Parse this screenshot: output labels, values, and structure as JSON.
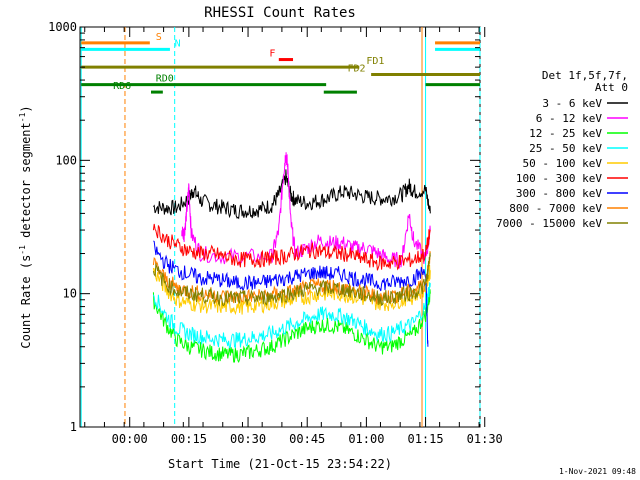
{
  "chart_data": {
    "type": "line",
    "title": "RHESSI Count Rates",
    "xlabel": "Start Time (21-Oct-15 23:54:22)",
    "ylabel_main": "Count Rate (s",
    "ylabel_sup1": "-1",
    "ylabel_mid": " detector segment",
    "ylabel_sup2": "-1",
    "ylabel_end": ")",
    "y_scale": "log",
    "ylim": [
      1,
      1000
    ],
    "y_ticks": [
      {
        "v": 1,
        "label": "1"
      },
      {
        "v": 10,
        "label": "10"
      },
      {
        "v": 100,
        "label": "100"
      },
      {
        "v": 1000,
        "label": "1000"
      }
    ],
    "xlim": [
      -0.11,
      1.58
    ],
    "x_ticks": [
      {
        "v": 0.1,
        "label": "00:00"
      },
      {
        "v": 0.35,
        "label": "00:15"
      },
      {
        "v": 0.6,
        "label": "00:30"
      },
      {
        "v": 0.85,
        "label": "00:45"
      },
      {
        "v": 1.1,
        "label": "01:00"
      },
      {
        "v": 1.35,
        "label": "01:15"
      },
      {
        "v": 1.6,
        "label": "01:30"
      }
    ],
    "minor_x_step": 0.0833,
    "legend_header": [
      "Det 1f,5f,7f,",
      "Att 0"
    ],
    "legend_position": "right",
    "series": [
      {
        "name": "3 - 6 keV",
        "color": "#000000",
        "points": [
          [
            0.2,
            45
          ],
          [
            0.25,
            44
          ],
          [
            0.3,
            44
          ],
          [
            0.35,
            52
          ],
          [
            0.37,
            60
          ],
          [
            0.4,
            50
          ],
          [
            0.45,
            46
          ],
          [
            0.5,
            44
          ],
          [
            0.55,
            42
          ],
          [
            0.6,
            42
          ],
          [
            0.65,
            43
          ],
          [
            0.7,
            46
          ],
          [
            0.73,
            55
          ],
          [
            0.76,
            75
          ],
          [
            0.78,
            55
          ],
          [
            0.8,
            50
          ],
          [
            0.85,
            48
          ],
          [
            0.9,
            50
          ],
          [
            0.95,
            53
          ],
          [
            1.0,
            58
          ],
          [
            1.05,
            56
          ],
          [
            1.1,
            53
          ],
          [
            1.15,
            52
          ],
          [
            1.2,
            52
          ],
          [
            1.25,
            55
          ],
          [
            1.28,
            65
          ],
          [
            1.3,
            58
          ],
          [
            1.35,
            60
          ],
          [
            1.37,
            40
          ]
        ]
      },
      {
        "name": "6 - 12 keV",
        "color": "#ff00ff",
        "points": [
          [
            0.32,
            30
          ],
          [
            0.33,
            28
          ],
          [
            0.34,
            40
          ],
          [
            0.35,
            64
          ],
          [
            0.36,
            28
          ],
          [
            0.4,
            20
          ],
          [
            0.5,
            19
          ],
          [
            0.6,
            19
          ],
          [
            0.7,
            19
          ],
          [
            0.73,
            30
          ],
          [
            0.75,
            80
          ],
          [
            0.76,
            115
          ],
          [
            0.77,
            80
          ],
          [
            0.78,
            35
          ],
          [
            0.8,
            20
          ],
          [
            0.85,
            22
          ],
          [
            0.9,
            25
          ],
          [
            0.95,
            24
          ],
          [
            1.0,
            24
          ],
          [
            1.05,
            22
          ],
          [
            1.1,
            22
          ],
          [
            1.15,
            20
          ],
          [
            1.2,
            18
          ],
          [
            1.25,
            18
          ],
          [
            1.28,
            40
          ],
          [
            1.3,
            25
          ],
          [
            1.35,
            18
          ],
          [
            1.37,
            30
          ]
        ]
      },
      {
        "name": "12 - 25 keV",
        "color": "#00ff00",
        "points": [
          [
            0.2,
            9
          ],
          [
            0.25,
            6
          ],
          [
            0.3,
            4.5
          ],
          [
            0.35,
            4
          ],
          [
            0.4,
            3.8
          ],
          [
            0.45,
            3.6
          ],
          [
            0.5,
            3.5
          ],
          [
            0.55,
            3.5
          ],
          [
            0.6,
            3.6
          ],
          [
            0.65,
            3.8
          ],
          [
            0.7,
            4
          ],
          [
            0.75,
            4.5
          ],
          [
            0.8,
            5
          ],
          [
            0.85,
            5.5
          ],
          [
            0.9,
            5.8
          ],
          [
            0.95,
            5.8
          ],
          [
            1.0,
            5.5
          ],
          [
            1.05,
            5
          ],
          [
            1.1,
            4.5
          ],
          [
            1.15,
            4
          ],
          [
            1.2,
            4
          ],
          [
            1.25,
            4.5
          ],
          [
            1.3,
            5
          ],
          [
            1.35,
            7
          ],
          [
            1.37,
            10
          ]
        ]
      },
      {
        "name": "25 - 50 keV",
        "color": "#00ffff",
        "points": [
          [
            0.2,
            10
          ],
          [
            0.25,
            7
          ],
          [
            0.3,
            5.5
          ],
          [
            0.35,
            5
          ],
          [
            0.4,
            4.8
          ],
          [
            0.45,
            4.6
          ],
          [
            0.5,
            4.5
          ],
          [
            0.55,
            4.5
          ],
          [
            0.6,
            4.6
          ],
          [
            0.65,
            4.8
          ],
          [
            0.7,
            5
          ],
          [
            0.75,
            5.5
          ],
          [
            0.8,
            6
          ],
          [
            0.85,
            6.5
          ],
          [
            0.9,
            7
          ],
          [
            0.95,
            7
          ],
          [
            1.0,
            6.8
          ],
          [
            1.05,
            6.2
          ],
          [
            1.1,
            5.5
          ],
          [
            1.15,
            5
          ],
          [
            1.2,
            5
          ],
          [
            1.25,
            5.5
          ],
          [
            1.3,
            6
          ],
          [
            1.35,
            8
          ],
          [
            1.37,
            12
          ]
        ]
      },
      {
        "name": "50 - 100 keV",
        "color": "#ffcc00",
        "points": [
          [
            0.2,
            15
          ],
          [
            0.25,
            11
          ],
          [
            0.3,
            9
          ],
          [
            0.35,
            8.5
          ],
          [
            0.4,
            8.2
          ],
          [
            0.45,
            8
          ],
          [
            0.5,
            8
          ],
          [
            0.55,
            8
          ],
          [
            0.6,
            8
          ],
          [
            0.65,
            8.2
          ],
          [
            0.7,
            8.5
          ],
          [
            0.75,
            8.8
          ],
          [
            0.8,
            9
          ],
          [
            0.85,
            9.5
          ],
          [
            0.9,
            10
          ],
          [
            0.95,
            10
          ],
          [
            1.0,
            10
          ],
          [
            1.05,
            9.5
          ],
          [
            1.1,
            9
          ],
          [
            1.15,
            8.5
          ],
          [
            1.2,
            8.5
          ],
          [
            1.25,
            9
          ],
          [
            1.3,
            9.5
          ],
          [
            1.35,
            11
          ],
          [
            1.37,
            15
          ]
        ]
      },
      {
        "name": "100 - 300 keV",
        "color": "#ff0000",
        "points": [
          [
            0.2,
            32
          ],
          [
            0.25,
            26
          ],
          [
            0.3,
            23
          ],
          [
            0.35,
            21
          ],
          [
            0.4,
            20
          ],
          [
            0.45,
            20
          ],
          [
            0.5,
            19
          ],
          [
            0.55,
            18
          ],
          [
            0.6,
            18
          ],
          [
            0.65,
            18
          ],
          [
            0.7,
            18.5
          ],
          [
            0.75,
            19
          ],
          [
            0.8,
            20
          ],
          [
            0.85,
            21
          ],
          [
            0.9,
            21
          ],
          [
            0.95,
            20
          ],
          [
            1.0,
            20
          ],
          [
            1.05,
            19
          ],
          [
            1.1,
            18
          ],
          [
            1.15,
            17
          ],
          [
            1.2,
            17
          ],
          [
            1.25,
            17.5
          ],
          [
            1.3,
            18
          ],
          [
            1.35,
            20
          ],
          [
            1.37,
            30
          ]
        ]
      },
      {
        "name": "300 - 800 keV",
        "color": "#0000ff",
        "points": [
          [
            0.2,
            22
          ],
          [
            0.25,
            17
          ],
          [
            0.3,
            15
          ],
          [
            0.35,
            14
          ],
          [
            0.4,
            13
          ],
          [
            0.45,
            13
          ],
          [
            0.5,
            12.5
          ],
          [
            0.55,
            12
          ],
          [
            0.6,
            12
          ],
          [
            0.65,
            12
          ],
          [
            0.7,
            12.5
          ],
          [
            0.75,
            13
          ],
          [
            0.8,
            13.5
          ],
          [
            0.85,
            14
          ],
          [
            0.9,
            14.5
          ],
          [
            0.95,
            14
          ],
          [
            1.0,
            14
          ],
          [
            1.05,
            13
          ],
          [
            1.1,
            12.5
          ],
          [
            1.15,
            12
          ],
          [
            1.2,
            12
          ],
          [
            1.25,
            12.5
          ],
          [
            1.3,
            13
          ],
          [
            1.35,
            15
          ],
          [
            1.36,
            4
          ]
        ]
      },
      {
        "name": "800 - 7000 keV",
        "color": "#ff8000",
        "points": [
          [
            0.2,
            17
          ],
          [
            0.25,
            13
          ],
          [
            0.3,
            11
          ],
          [
            0.35,
            10.5
          ],
          [
            0.4,
            10
          ],
          [
            0.45,
            9.8
          ],
          [
            0.5,
            9.5
          ],
          [
            0.55,
            9.5
          ],
          [
            0.6,
            9.5
          ],
          [
            0.65,
            9.5
          ],
          [
            0.7,
            9.8
          ],
          [
            0.75,
            10
          ],
          [
            0.8,
            10.5
          ],
          [
            0.85,
            11
          ],
          [
            0.9,
            11.5
          ],
          [
            0.95,
            11.5
          ],
          [
            1.0,
            11
          ],
          [
            1.05,
            10.5
          ],
          [
            1.1,
            10
          ],
          [
            1.15,
            9.5
          ],
          [
            1.2,
            9.5
          ],
          [
            1.25,
            10
          ],
          [
            1.3,
            10.5
          ],
          [
            1.35,
            12
          ],
          [
            1.37,
            20
          ]
        ]
      },
      {
        "name": "7000 - 15000 keV",
        "color": "#808000",
        "points": [
          [
            0.2,
            16
          ],
          [
            0.25,
            12
          ],
          [
            0.3,
            10.5
          ],
          [
            0.35,
            10
          ],
          [
            0.4,
            9.8
          ],
          [
            0.45,
            9.5
          ],
          [
            0.5,
            9.3
          ],
          [
            0.55,
            9.2
          ],
          [
            0.6,
            9.2
          ],
          [
            0.65,
            9.3
          ],
          [
            0.7,
            9.5
          ],
          [
            0.75,
            9.8
          ],
          [
            0.8,
            10.2
          ],
          [
            0.85,
            10.8
          ],
          [
            0.9,
            11
          ],
          [
            0.95,
            11
          ],
          [
            1.0,
            10.8
          ],
          [
            1.05,
            10.2
          ],
          [
            1.1,
            9.8
          ],
          [
            1.15,
            9.3
          ],
          [
            1.2,
            9.3
          ],
          [
            1.25,
            9.8
          ],
          [
            1.3,
            10.2
          ],
          [
            1.35,
            11.5
          ],
          [
            1.37,
            19
          ]
        ]
      }
    ],
    "flag_bars": [
      {
        "label": "S",
        "color": "#ff8000",
        "y": 760,
        "x0": -0.105,
        "x1": 0.185,
        "label_at": 0.21
      },
      {
        "label": "",
        "color": "#ff8000",
        "y": 760,
        "x0": 1.39,
        "x1": 1.58,
        "label_at": null
      },
      {
        "label": "N",
        "color": "#00ffff",
        "y": 680,
        "x0": -0.105,
        "x1": 0.27,
        "label_at": 0.29
      },
      {
        "label": "",
        "color": "#00ffff",
        "y": 680,
        "x0": 1.39,
        "x1": 1.58,
        "label_at": null
      },
      {
        "label": "F",
        "color": "#ff0000",
        "y": 570,
        "x0": 0.73,
        "x1": 0.79,
        "label_at": 0.69
      },
      {
        "label": "FD1",
        "color": "#808000",
        "y": 500,
        "x0": -0.105,
        "x1": 1.07,
        "label_at": 1.1
      },
      {
        "label": "FD2",
        "color": "#808000",
        "y": 440,
        "x0": 1.12,
        "x1": 1.58,
        "label_at": 1.02
      },
      {
        "label": "RD0",
        "color": "#008000",
        "y": 370,
        "x0": -0.105,
        "x1": 0.93,
        "label_at": 0.21
      },
      {
        "label": "",
        "color": "#008000",
        "y": 370,
        "x0": 1.35,
        "x1": 1.58,
        "label_at": null
      },
      {
        "label": "RD6",
        "color": "#008000",
        "y": 325,
        "x0": 0.19,
        "x1": 0.24,
        "label_at": 0.03
      },
      {
        "label": "",
        "color": "#008000",
        "y": 325,
        "x0": 0.92,
        "x1": 1.06,
        "label_at": null
      }
    ],
    "vlines": [
      {
        "x": -0.105,
        "color": "#00ffff",
        "dash": false
      },
      {
        "x": 0.08,
        "color": "#ff8000",
        "dash": true
      },
      {
        "x": 0.29,
        "color": "#00ffff",
        "dash": true
      },
      {
        "x": 1.335,
        "color": "#ff8000",
        "dash": false
      },
      {
        "x": 1.35,
        "color": "#00ffff",
        "dash": false
      },
      {
        "x": 1.58,
        "color": "#00ffff",
        "dash": true
      }
    ]
  },
  "footer_date": "1-Nov-2021 09:48"
}
